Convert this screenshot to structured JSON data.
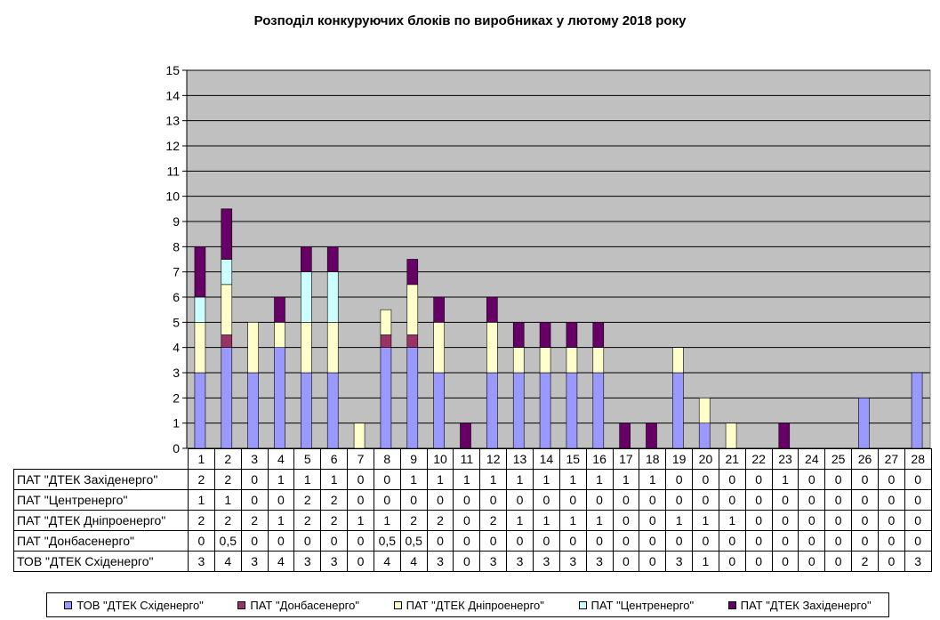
{
  "chart_data": {
    "type": "bar",
    "stacked": true,
    "title": "Розподіл конкуруючих блоків по виробниках у лютому 2018 року",
    "categories": [
      "1",
      "2",
      "3",
      "4",
      "5",
      "6",
      "7",
      "8",
      "9",
      "10",
      "11",
      "12",
      "13",
      "14",
      "15",
      "16",
      "17",
      "18",
      "19",
      "20",
      "21",
      "22",
      "23",
      "24",
      "25",
      "26",
      "27",
      "28"
    ],
    "ylim": [
      0,
      15
    ],
    "yticks": [
      "0",
      "1",
      "2",
      "3",
      "4",
      "5",
      "6",
      "7",
      "8",
      "9",
      "10",
      "11",
      "12",
      "13",
      "14",
      "15"
    ],
    "grid": true,
    "legend_position": "bottom",
    "series": [
      {
        "name": "ТОВ \"ДТЕК Східенерго\"",
        "color": "#9999ff",
        "values": [
          3,
          4,
          3,
          4,
          3,
          3,
          0,
          4,
          4,
          3,
          0,
          3,
          3,
          3,
          3,
          3,
          0,
          0,
          3,
          1,
          0,
          0,
          0,
          0,
          0,
          2,
          0,
          3
        ],
        "labels": [
          "3",
          "4",
          "3",
          "4",
          "3",
          "3",
          "0",
          "4",
          "4",
          "3",
          "0",
          "3",
          "3",
          "3",
          "3",
          "3",
          "0",
          "0",
          "3",
          "1",
          "0",
          "0",
          "0",
          "0",
          "0",
          "2",
          "0",
          "3"
        ]
      },
      {
        "name": "ПАТ \"Донбасенерго\"",
        "color": "#993366",
        "values": [
          0,
          0.5,
          0,
          0,
          0,
          0,
          0,
          0.5,
          0.5,
          0,
          0,
          0,
          0,
          0,
          0,
          0,
          0,
          0,
          0,
          0,
          0,
          0,
          0,
          0,
          0,
          0,
          0,
          0
        ],
        "labels": [
          "0",
          "0,5",
          "0",
          "0",
          "0",
          "0",
          "0",
          "0,5",
          "0,5",
          "0",
          "0",
          "0",
          "0",
          "0",
          "0",
          "0",
          "0",
          "0",
          "0",
          "0",
          "0",
          "0",
          "0",
          "0",
          "0",
          "0",
          "0",
          "0"
        ]
      },
      {
        "name": "ПАТ \"ДТЕК Дніпроенерго\"",
        "color": "#ffffcc",
        "values": [
          2,
          2,
          2,
          1,
          2,
          2,
          1,
          1,
          2,
          2,
          0,
          2,
          1,
          1,
          1,
          1,
          0,
          0,
          1,
          1,
          1,
          0,
          0,
          0,
          0,
          0,
          0,
          0
        ],
        "labels": [
          "2",
          "2",
          "2",
          "1",
          "2",
          "2",
          "1",
          "1",
          "2",
          "2",
          "0",
          "2",
          "1",
          "1",
          "1",
          "1",
          "0",
          "0",
          "1",
          "1",
          "1",
          "0",
          "0",
          "0",
          "0",
          "0",
          "0",
          "0"
        ]
      },
      {
        "name": "ПАТ \"Центренерго\"",
        "color": "#ccffff",
        "values": [
          1,
          1,
          0,
          0,
          2,
          2,
          0,
          0,
          0,
          0,
          0,
          0,
          0,
          0,
          0,
          0,
          0,
          0,
          0,
          0,
          0,
          0,
          0,
          0,
          0,
          0,
          0,
          0
        ],
        "labels": [
          "1",
          "1",
          "0",
          "0",
          "2",
          "2",
          "0",
          "0",
          "0",
          "0",
          "0",
          "0",
          "0",
          "0",
          "0",
          "0",
          "0",
          "0",
          "0",
          "0",
          "0",
          "0",
          "0",
          "0",
          "0",
          "0",
          "0",
          "0"
        ]
      },
      {
        "name": "ПАТ \"ДТЕК Західенерго\"",
        "color": "#660066",
        "values": [
          2,
          2,
          0,
          1,
          1,
          1,
          0,
          0,
          1,
          1,
          1,
          1,
          1,
          1,
          1,
          1,
          1,
          1,
          0,
          0,
          0,
          0,
          1,
          0,
          0,
          0,
          0,
          0
        ],
        "labels": [
          "2",
          "2",
          "0",
          "1",
          "1",
          "1",
          "0",
          "0",
          "1",
          "1",
          "1",
          "1",
          "1",
          "1",
          "1",
          "1",
          "1",
          "1",
          "0",
          "0",
          "0",
          "0",
          "1",
          "0",
          "0",
          "0",
          "0",
          "0"
        ]
      }
    ],
    "table_row_order": [
      4,
      3,
      2,
      1,
      0
    ],
    "legend_order": [
      0,
      1,
      2,
      3,
      4
    ]
  }
}
